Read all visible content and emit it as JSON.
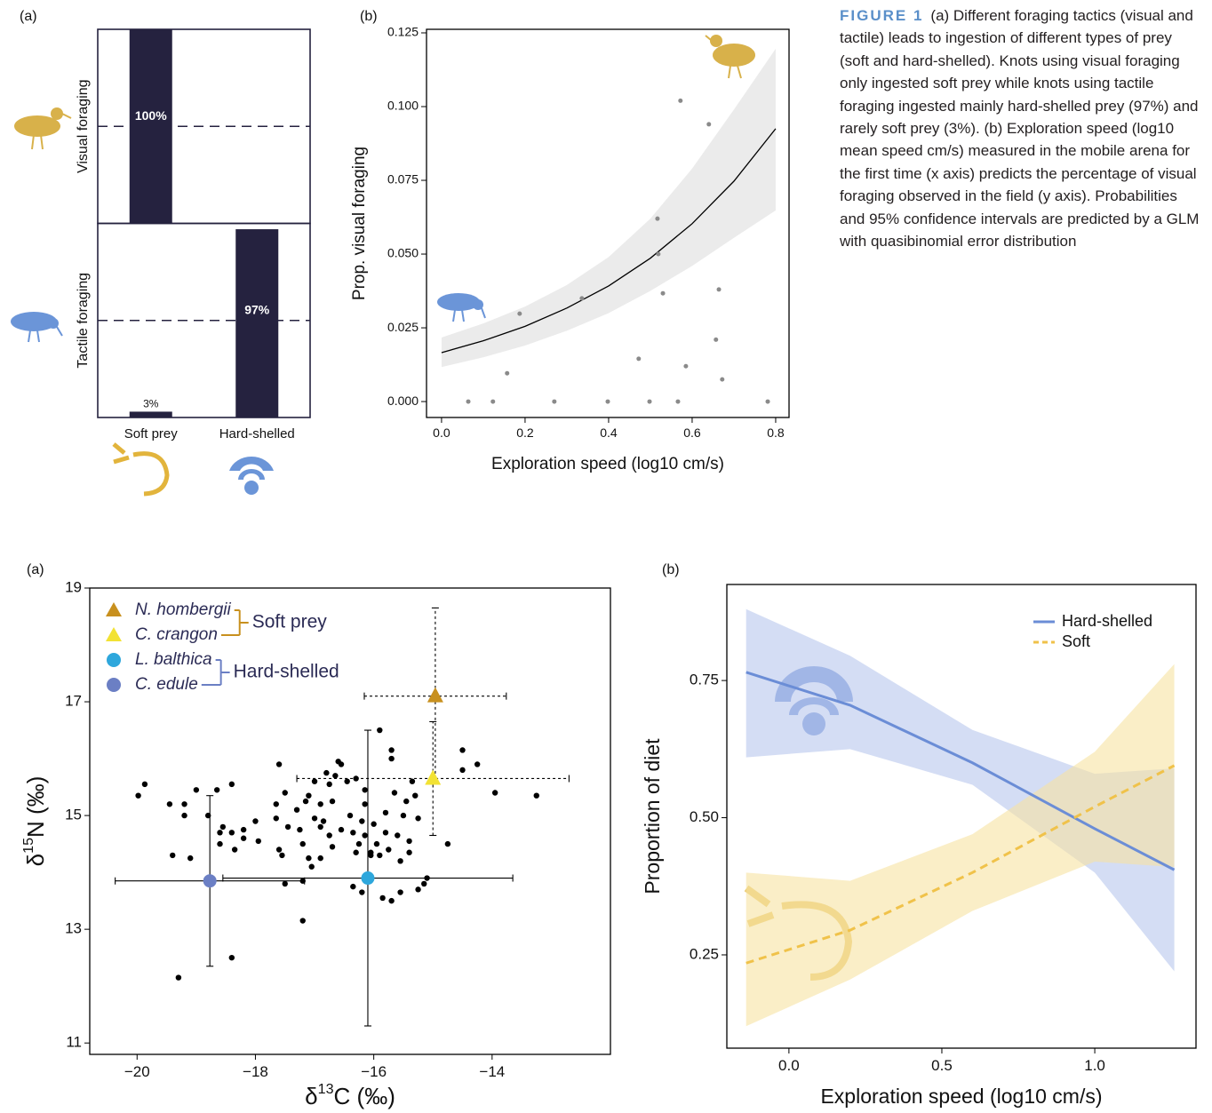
{
  "figure": {
    "label": "FIGURE 1",
    "caption": "(a) Different foraging tactics (visual and tactile) leads to ingestion of different types of prey (soft and hard-shelled). Knots using visual foraging only ingested soft prey while knots using tactile foraging ingested mainly hard-shelled prey (97%) and rarely soft prey (3%). (b) Exploration speed (log10 mean speed cm/s) measured in the mobile arena for the first time (x axis) predicts the percentage of visual foraging observed in the field (y axis). Probabilities and 95% confidence intervals are predicted by a GLM with quasibinomial error distribution"
  },
  "chart_data": [
    {
      "type": "bar",
      "panel_label": "(a)",
      "categories": [
        "Soft prey",
        "Hard-shelled"
      ],
      "color": "#25223f",
      "facets": [
        {
          "name": "Visual foraging",
          "values": [
            100,
            0
          ],
          "value_labels": [
            "100%",
            null
          ]
        },
        {
          "name": "Tactile foraging",
          "values": [
            3,
            97
          ],
          "value_labels": [
            "3%",
            "97%"
          ]
        }
      ],
      "ylim": [
        0,
        100
      ],
      "reference_line": 50
    },
    {
      "type": "scatter",
      "panel_label": "(b)",
      "xlabel": "Exploration speed (log10 cm/s)",
      "ylabel": "Prop. visual foraging",
      "xlim": [
        -0.036,
        0.832
      ],
      "ylim": [
        -0.0054,
        0.1262
      ],
      "xticks": [
        {
          "value": 0,
          "label": "0.0"
        },
        0.2,
        0.4,
        0.6,
        0.8
      ],
      "yticks": [
        {
          "value": 0,
          "label": "0.000"
        },
        0.025,
        {
          "value": 0.05,
          "label": "0.050"
        },
        0.075,
        {
          "value": 0.1,
          "label": "0.100"
        },
        0.125
      ],
      "points": {
        "color": "#8a8a8a",
        "x": [
          0.064,
          0.123,
          0.157,
          0.187,
          0.27,
          0.336,
          0.398,
          0.472,
          0.498,
          0.517,
          0.519,
          0.53,
          0.566,
          0.572,
          0.585,
          0.64,
          0.657,
          0.664,
          0.672,
          0.781
        ],
        "values": [
          0,
          0,
          0.0096,
          0.0298,
          0,
          0.035,
          0,
          0.0145,
          0,
          0.062,
          0.05,
          0.0367,
          0,
          0.102,
          0.012,
          0.094,
          0.021,
          0.038,
          0.0075,
          0
        ]
      },
      "fit": {
        "color": "#000000",
        "band_color": "#ebebeb",
        "x": [
          0,
          0.1,
          0.2,
          0.3,
          0.4,
          0.5,
          0.6,
          0.7,
          0.8
        ],
        "values": [
          0.0166,
          0.0206,
          0.0255,
          0.0317,
          0.0392,
          0.0486,
          0.0603,
          0.0747,
          0.0925
        ],
        "lower": [
          0.0117,
          0.015,
          0.019,
          0.024,
          0.03,
          0.0375,
          0.046,
          0.0555,
          0.0648
        ],
        "upper": [
          0.0217,
          0.0265,
          0.0322,
          0.0395,
          0.049,
          0.062,
          0.079,
          0.099,
          0.1196
        ]
      }
    },
    {
      "type": "scatter",
      "panel_label": "(a)",
      "xlabel": {
        "base": "δ",
        "sup": "13",
        "rest": "C (‰)"
      },
      "ylabel": {
        "base": "δ",
        "sup": "15",
        "rest": "N (‰)"
      },
      "xlim": [
        -20.8,
        -12.0
      ],
      "ylim": [
        10.8,
        19.0
      ],
      "xticks": [
        {
          "value": -20,
          "label": "−20"
        },
        {
          "value": -18,
          "label": "−18"
        },
        {
          "value": -16,
          "label": "−16"
        },
        {
          "value": -14,
          "label": "−14"
        }
      ],
      "yticks": [
        11,
        13,
        15,
        17,
        19
      ],
      "legend": "top-left",
      "points": {
        "color": "#000000",
        "x": [
          -19.98,
          -19.87,
          -19.45,
          -19.2,
          -19.0,
          -19.2,
          -18.8,
          -18.65,
          -18.4,
          -18.55,
          -18.6,
          -18.4,
          -18.2,
          -18.2,
          -18.0,
          -17.95,
          -18.35,
          -18.6,
          -19.4,
          -19.1,
          -19.3,
          -18.4,
          -17.2,
          -17.5,
          -17.2,
          -17.65,
          -17.6,
          -17.65,
          -17.5,
          -17.45,
          -17.6,
          -17.55,
          -17.3,
          -17.25,
          -17.2,
          -17.1,
          -17.05,
          -16.9,
          -17.15,
          -17.1,
          -17.0,
          -17.0,
          -16.8,
          -16.75,
          -16.6,
          -16.55,
          -16.65,
          -16.45,
          -16.9,
          -16.85,
          -16.75,
          -16.7,
          -16.55,
          -16.4,
          -16.35,
          -16.3,
          -16.25,
          -16.2,
          -16.15,
          -16.15,
          -16.05,
          -16.0,
          -15.95,
          -15.9,
          -15.9,
          -15.8,
          -15.8,
          -15.75,
          -15.65,
          -15.6,
          -15.55,
          -15.5,
          -15.45,
          -15.4,
          -15.4,
          -15.3,
          -15.25,
          -15.7,
          -15.55,
          -15.85,
          -16.2,
          -16.35,
          -15.15,
          -15.25,
          -15.7,
          -15.7,
          -15.1,
          -14.5,
          -14.25,
          -13.95,
          -13.25,
          -14.5,
          -14.75,
          -15.35,
          -16.9,
          -16.7,
          -16.15,
          -16.3,
          -16.05
        ],
        "values": [
          15.35,
          15.55,
          15.2,
          15.2,
          15.45,
          15.0,
          15.0,
          15.45,
          15.55,
          14.8,
          14.7,
          14.7,
          14.75,
          14.6,
          14.9,
          14.55,
          14.4,
          14.5,
          14.3,
          14.25,
          12.15,
          12.5,
          13.15,
          13.8,
          13.85,
          15.2,
          15.9,
          14.95,
          15.4,
          14.8,
          14.4,
          14.3,
          15.1,
          14.75,
          14.5,
          14.25,
          14.1,
          14.25,
          15.25,
          15.35,
          14.95,
          15.6,
          15.75,
          15.55,
          15.95,
          15.9,
          15.7,
          15.6,
          15.2,
          14.9,
          14.65,
          14.45,
          14.75,
          15.0,
          14.7,
          14.35,
          14.5,
          14.9,
          15.2,
          14.65,
          14.35,
          14.85,
          14.5,
          16.5,
          14.3,
          14.7,
          15.05,
          14.4,
          15.4,
          14.65,
          14.2,
          15.0,
          15.25,
          14.55,
          14.35,
          15.35,
          14.95,
          13.5,
          13.65,
          13.55,
          13.65,
          13.75,
          13.8,
          13.7,
          16.15,
          16.0,
          13.9,
          16.15,
          15.9,
          15.4,
          15.35,
          15.8,
          14.5,
          15.6,
          14.8,
          15.25,
          15.45,
          15.65,
          14.3
        ]
      },
      "groups": [
        {
          "name": "Soft prey",
          "color": "#c8901e",
          "error_style": "dotted"
        },
        {
          "name": "Hard-shelled",
          "color": "#6b7fc4",
          "error_style": "solid"
        }
      ],
      "series": [
        {
          "name": "N. hombergii",
          "group": 0,
          "marker": "triangle",
          "color": "#c8901e",
          "x": [
            -14.96
          ],
          "values": [
            17.1
          ],
          "xerr": [
            1.2
          ],
          "yerr": [
            1.55
          ]
        },
        {
          "name": "C. crangon",
          "group": 0,
          "marker": "triangle",
          "color": "#f2e234",
          "x": [
            -15.0
          ],
          "values": [
            15.65
          ],
          "xerr": [
            2.3
          ],
          "yerr": [
            1.0
          ]
        },
        {
          "name": "L. balthica",
          "group": 1,
          "marker": "circle",
          "color": "#2ea7dc",
          "x": [
            -16.1
          ],
          "values": [
            13.9
          ],
          "xerr": [
            2.45
          ],
          "yerr": [
            2.6
          ]
        },
        {
          "name": "C. edule",
          "group": 1,
          "marker": "circle",
          "color": "#6b7fc4",
          "x": [
            -18.77
          ],
          "values": [
            13.85
          ],
          "xerr": [
            1.6
          ],
          "yerr": [
            1.5
          ]
        }
      ]
    },
    {
      "type": "line",
      "panel_label": "(b)",
      "xlabel": "Exploration speed (log10 cm/s)",
      "ylabel": "Proportion of diet",
      "xlim": [
        -0.203,
        1.331
      ],
      "ylim": [
        0.08,
        0.925
      ],
      "xticks": [
        {
          "value": 0,
          "label": "0.0"
        },
        0.5,
        {
          "value": 1,
          "label": "1.0"
        }
      ],
      "yticks": [
        0.25,
        {
          "value": 0.5,
          "label": "0.50"
        },
        0.75
      ],
      "legend": "top-right",
      "x": [
        -0.14,
        0.2,
        0.6,
        1.0,
        1.26
      ],
      "series": [
        {
          "name": "Hard-shelled",
          "color": "#6b8dd6",
          "band_color": "#b8c6ec",
          "dash": "solid",
          "values": [
            0.765,
            0.705,
            0.6,
            0.48,
            0.405
          ],
          "lower": [
            0.61,
            0.625,
            0.56,
            0.4,
            0.22
          ],
          "upper": [
            0.88,
            0.795,
            0.66,
            0.58,
            0.59
          ]
        },
        {
          "name": "Soft",
          "color": "#f0c24a",
          "band_color": "#f7e2a2",
          "dash": "dashed",
          "values": [
            0.235,
            0.295,
            0.4,
            0.52,
            0.595
          ],
          "lower": [
            0.12,
            0.205,
            0.33,
            0.42,
            0.41
          ],
          "upper": [
            0.4,
            0.385,
            0.47,
            0.62,
            0.78
          ]
        }
      ]
    }
  ]
}
